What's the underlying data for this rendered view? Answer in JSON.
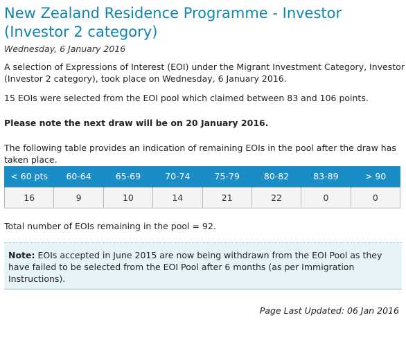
{
  "header": {
    "title": "New Zealand Residence Programme - Investor (Investor 2 category)",
    "date": "Wednesday, 6 January 2016"
  },
  "paragraphs": {
    "intro": "A selection of Expressions of Interest (EOI) under the Migrant Investment Category, Investor (Investor 2 category), took place on Wednesday, 6 January 2016.",
    "selected": "15 EOIs were selected from the EOI pool which claimed between 83 and 106 points.",
    "next_draw": "Please note the next draw will be on 20 January 2016.",
    "table_intro": "The following table provides an indication of remaining EOIs in the pool after the draw has taken place.",
    "total": "Total number of EOIs remaining in the pool = 92."
  },
  "table": {
    "headers": [
      "< 60 pts",
      "60-64",
      "65-69",
      "70-74",
      "75-79",
      "80-82",
      "83-89",
      "> 90"
    ],
    "values": [
      "16",
      "9",
      "10",
      "14",
      "21",
      "22",
      "0",
      "0"
    ]
  },
  "note": {
    "label": "Note:",
    "text": " EOIs accepted in June 2015 are now being withdrawn from the EOI Pool as they have failed to be selected from the EOI Pool after 6 months (as per Immigration Instructions)."
  },
  "footer": {
    "updated": "Page Last Updated: 06 Jan 2016"
  },
  "colors": {
    "title": "#0e85b3",
    "table_header_bg": "#1a8cc6",
    "note_bg": "#e6f3f8"
  }
}
